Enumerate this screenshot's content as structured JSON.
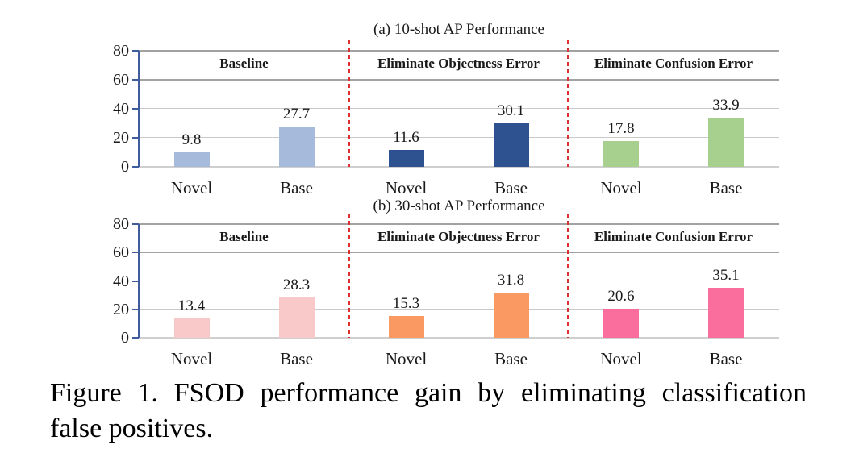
{
  "caption": {
    "line1": "Figure 1. FSOD performance gain by eliminating classification",
    "line2": "false positives."
  },
  "colors": {
    "axis": "#3e5c9e",
    "separator": "#df3030",
    "gridline_major": "#a2a2a2",
    "gridline_minor": "#c9c9c9",
    "text": "#1a1a1a"
  },
  "chart_data": [
    {
      "type": "bar",
      "title": "(a) 10-shot AP Performance",
      "ylim": [
        0,
        80
      ],
      "yticks": [
        0,
        20,
        40,
        60,
        80
      ],
      "grid": true,
      "value_labels_shown": true,
      "categories": [
        "Novel",
        "Base"
      ],
      "sections": [
        {
          "label": "Baseline",
          "values": [
            9.8,
            27.7
          ],
          "bar_color": "#a6badb"
        },
        {
          "label": "Eliminate Objectness Error",
          "values": [
            11.6,
            30.1
          ],
          "bar_color": "#2e528f"
        },
        {
          "label": "Eliminate Confusion Error",
          "values": [
            17.8,
            33.9
          ],
          "bar_color": "#a7cf8e"
        }
      ]
    },
    {
      "type": "bar",
      "title": "(b) 30-shot AP Performance",
      "ylim": [
        0,
        80
      ],
      "yticks": [
        0,
        20,
        40,
        60,
        80
      ],
      "grid": true,
      "value_labels_shown": true,
      "categories": [
        "Novel",
        "Base"
      ],
      "sections": [
        {
          "label": "Baseline",
          "values": [
            13.4,
            28.3
          ],
          "bar_color": "#f9c9c9"
        },
        {
          "label": "Eliminate Objectness Error",
          "values": [
            15.3,
            31.8
          ],
          "bar_color": "#fa9a62"
        },
        {
          "label": "Eliminate Confusion Error",
          "values": [
            20.6,
            35.1
          ],
          "bar_color": "#fa6e9d"
        }
      ]
    }
  ]
}
